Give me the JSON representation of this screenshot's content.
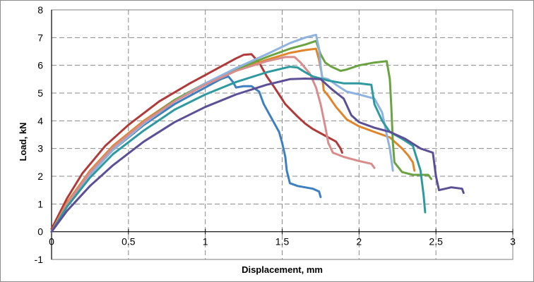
{
  "chart_data": {
    "type": "line",
    "title": "",
    "xlabel": "Displacement, mm",
    "ylabel": "Load, kN",
    "xlim": [
      0,
      3
    ],
    "ylim": [
      -1,
      8
    ],
    "x_ticks": [
      "0",
      "0.5",
      "1",
      "1.5",
      "2",
      "2.5",
      "3"
    ],
    "y_ticks": [
      "-1",
      "0",
      "1",
      "2",
      "3",
      "4",
      "5",
      "6",
      "7",
      "8"
    ],
    "grid": true,
    "grid_style": "dashed",
    "legend": "none",
    "series": [
      {
        "color": "#b03a3a",
        "points": [
          [
            0,
            0.1
          ],
          [
            0.1,
            1.2
          ],
          [
            0.2,
            2.1
          ],
          [
            0.35,
            3.1
          ],
          [
            0.5,
            3.85
          ],
          [
            0.7,
            4.7
          ],
          [
            0.9,
            5.35
          ],
          [
            1.0,
            5.65
          ],
          [
            1.1,
            5.95
          ],
          [
            1.2,
            6.25
          ],
          [
            1.25,
            6.38
          ],
          [
            1.3,
            6.4
          ],
          [
            1.35,
            6.1
          ],
          [
            1.4,
            5.6
          ],
          [
            1.45,
            5.2
          ],
          [
            1.52,
            4.6
          ],
          [
            1.6,
            4.15
          ],
          [
            1.65,
            3.9
          ],
          [
            1.7,
            3.7
          ],
          [
            1.75,
            3.55
          ],
          [
            1.8,
            3.4
          ],
          [
            1.85,
            3.25
          ],
          [
            1.88,
            3.0
          ],
          [
            1.89,
            2.85
          ]
        ]
      },
      {
        "color": "#3d7fc0",
        "points": [
          [
            0,
            0
          ],
          [
            0.1,
            0.95
          ],
          [
            0.25,
            2.1
          ],
          [
            0.4,
            2.95
          ],
          [
            0.6,
            3.85
          ],
          [
            0.8,
            4.6
          ],
          [
            1.0,
            5.2
          ],
          [
            1.1,
            5.5
          ],
          [
            1.15,
            5.6
          ],
          [
            1.18,
            5.4
          ],
          [
            1.2,
            5.2
          ],
          [
            1.25,
            5.25
          ],
          [
            1.3,
            5.25
          ],
          [
            1.35,
            5.05
          ],
          [
            1.38,
            4.6
          ],
          [
            1.42,
            4.2
          ],
          [
            1.48,
            3.6
          ],
          [
            1.5,
            3.2
          ],
          [
            1.52,
            2.7
          ],
          [
            1.53,
            2.2
          ],
          [
            1.55,
            1.75
          ],
          [
            1.6,
            1.65
          ],
          [
            1.7,
            1.55
          ],
          [
            1.74,
            1.45
          ],
          [
            1.75,
            1.25
          ]
        ]
      },
      {
        "color": "#e0852a",
        "points": [
          [
            0,
            0
          ],
          [
            0.1,
            1.05
          ],
          [
            0.25,
            2.2
          ],
          [
            0.4,
            3.1
          ],
          [
            0.6,
            4.0
          ],
          [
            0.8,
            4.75
          ],
          [
            1.0,
            5.35
          ],
          [
            1.2,
            5.8
          ],
          [
            1.4,
            6.2
          ],
          [
            1.55,
            6.45
          ],
          [
            1.65,
            6.55
          ],
          [
            1.72,
            6.6
          ],
          [
            1.74,
            6.2
          ],
          [
            1.76,
            5.6
          ],
          [
            1.77,
            5.1
          ],
          [
            1.8,
            4.9
          ],
          [
            1.85,
            4.5
          ],
          [
            1.92,
            4.05
          ],
          [
            2.0,
            3.8
          ],
          [
            2.1,
            3.6
          ],
          [
            2.2,
            3.4
          ],
          [
            2.28,
            3.0
          ],
          [
            2.32,
            2.75
          ],
          [
            2.35,
            2.5
          ],
          [
            2.36,
            2.2
          ]
        ]
      },
      {
        "color": "#6ba342",
        "points": [
          [
            0,
            0
          ],
          [
            0.1,
            1.0
          ],
          [
            0.25,
            2.15
          ],
          [
            0.4,
            3.05
          ],
          [
            0.6,
            3.95
          ],
          [
            0.8,
            4.75
          ],
          [
            1.0,
            5.35
          ],
          [
            1.2,
            5.85
          ],
          [
            1.4,
            6.3
          ],
          [
            1.55,
            6.6
          ],
          [
            1.65,
            6.75
          ],
          [
            1.72,
            6.88
          ],
          [
            1.75,
            6.4
          ],
          [
            1.78,
            6.1
          ],
          [
            1.82,
            5.95
          ],
          [
            1.88,
            5.8
          ],
          [
            1.92,
            5.85
          ],
          [
            2.0,
            6.0
          ],
          [
            2.1,
            6.1
          ],
          [
            2.18,
            6.15
          ],
          [
            2.2,
            5.5
          ],
          [
            2.21,
            4.5
          ],
          [
            2.22,
            3.2
          ],
          [
            2.23,
            2.5
          ],
          [
            2.28,
            2.15
          ],
          [
            2.35,
            2.05
          ],
          [
            2.45,
            2.05
          ],
          [
            2.47,
            1.9
          ]
        ]
      },
      {
        "color": "#8fb3e0",
        "points": [
          [
            0,
            0
          ],
          [
            0.1,
            0.95
          ],
          [
            0.25,
            2.05
          ],
          [
            0.4,
            2.95
          ],
          [
            0.6,
            3.9
          ],
          [
            0.8,
            4.7
          ],
          [
            1.0,
            5.35
          ],
          [
            1.2,
            5.9
          ],
          [
            1.4,
            6.4
          ],
          [
            1.55,
            6.8
          ],
          [
            1.65,
            7.0
          ],
          [
            1.72,
            7.1
          ],
          [
            1.74,
            6.6
          ],
          [
            1.75,
            6.0
          ],
          [
            1.76,
            5.55
          ],
          [
            1.8,
            5.5
          ],
          [
            1.85,
            5.3
          ],
          [
            1.92,
            5.05
          ],
          [
            2.0,
            4.95
          ],
          [
            2.1,
            4.8
          ],
          [
            2.15,
            4.3
          ],
          [
            2.18,
            3.5
          ],
          [
            2.2,
            3.0
          ],
          [
            2.22,
            2.2
          ]
        ]
      },
      {
        "color": "#d98c8c",
        "points": [
          [
            0,
            0
          ],
          [
            0.1,
            1.0
          ],
          [
            0.25,
            2.15
          ],
          [
            0.4,
            3.05
          ],
          [
            0.6,
            3.95
          ],
          [
            0.8,
            4.7
          ],
          [
            1.0,
            5.3
          ],
          [
            1.2,
            5.8
          ],
          [
            1.4,
            6.15
          ],
          [
            1.52,
            6.3
          ],
          [
            1.58,
            6.3
          ],
          [
            1.62,
            6.1
          ],
          [
            1.68,
            5.7
          ],
          [
            1.72,
            5.2
          ],
          [
            1.75,
            4.6
          ],
          [
            1.78,
            3.8
          ],
          [
            1.8,
            3.2
          ],
          [
            1.83,
            2.85
          ],
          [
            1.9,
            2.7
          ],
          [
            2.0,
            2.55
          ],
          [
            2.08,
            2.45
          ],
          [
            2.1,
            2.3
          ]
        ]
      },
      {
        "color": "#2e9aa0",
        "points": [
          [
            0,
            0
          ],
          [
            0.1,
            0.9
          ],
          [
            0.25,
            1.95
          ],
          [
            0.4,
            2.8
          ],
          [
            0.6,
            3.65
          ],
          [
            0.8,
            4.4
          ],
          [
            1.0,
            4.95
          ],
          [
            1.2,
            5.4
          ],
          [
            1.4,
            5.75
          ],
          [
            1.55,
            5.95
          ],
          [
            1.6,
            5.92
          ],
          [
            1.65,
            5.75
          ],
          [
            1.7,
            5.6
          ],
          [
            1.8,
            5.45
          ],
          [
            1.9,
            5.35
          ],
          [
            2.0,
            5.35
          ],
          [
            2.08,
            5.3
          ],
          [
            2.1,
            4.6
          ],
          [
            2.15,
            4.0
          ],
          [
            2.2,
            3.6
          ],
          [
            2.28,
            3.35
          ],
          [
            2.35,
            3.1
          ],
          [
            2.4,
            2.2
          ],
          [
            2.42,
            1.3
          ],
          [
            2.43,
            0.7
          ]
        ]
      },
      {
        "color": "#5c4f96",
        "points": [
          [
            0,
            0
          ],
          [
            0.1,
            0.75
          ],
          [
            0.25,
            1.65
          ],
          [
            0.4,
            2.4
          ],
          [
            0.6,
            3.25
          ],
          [
            0.8,
            3.95
          ],
          [
            1.0,
            4.5
          ],
          [
            1.2,
            4.95
          ],
          [
            1.4,
            5.3
          ],
          [
            1.55,
            5.5
          ],
          [
            1.65,
            5.52
          ],
          [
            1.75,
            5.5
          ],
          [
            1.82,
            5.15
          ],
          [
            1.9,
            4.8
          ],
          [
            1.95,
            4.2
          ],
          [
            2.0,
            3.95
          ],
          [
            2.1,
            3.75
          ],
          [
            2.2,
            3.6
          ],
          [
            2.3,
            3.35
          ],
          [
            2.4,
            3.0
          ],
          [
            2.48,
            2.85
          ],
          [
            2.5,
            2.0
          ],
          [
            2.52,
            1.5
          ],
          [
            2.6,
            1.6
          ],
          [
            2.67,
            1.55
          ],
          [
            2.68,
            1.4
          ]
        ]
      }
    ]
  }
}
